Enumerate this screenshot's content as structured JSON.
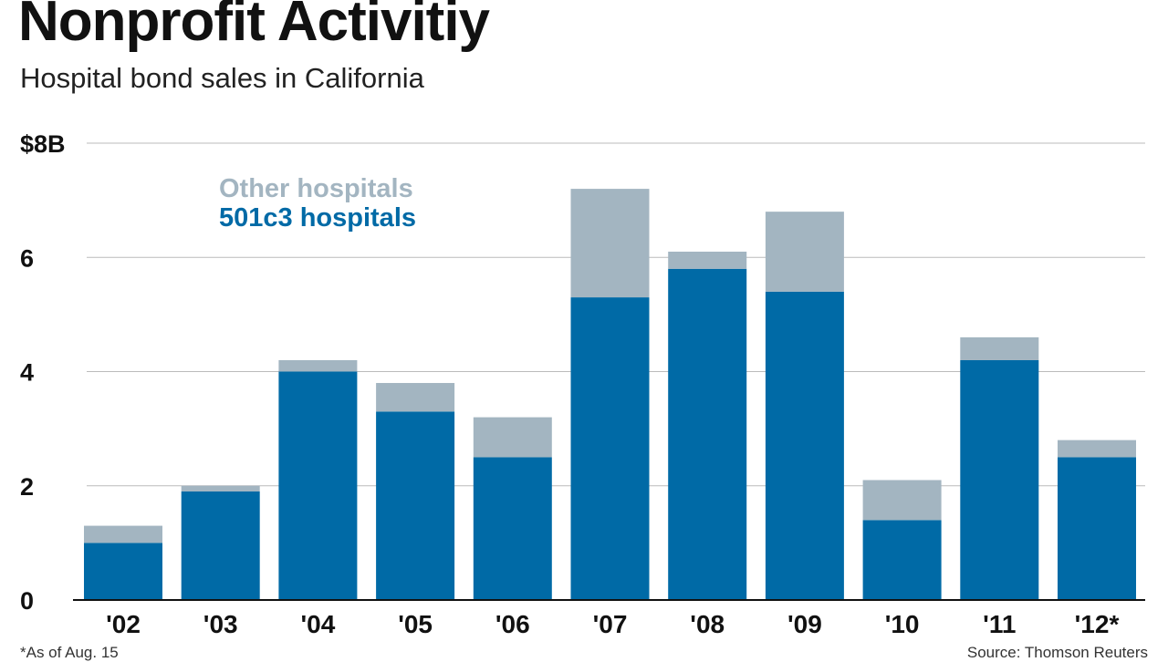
{
  "title": "Nonprofit Activitiy",
  "subtitle": "Hospital bond sales in California",
  "footnote": "*As of Aug. 15",
  "source": "Source: Thomson Reuters",
  "colors": {
    "other": "#a3b5c1",
    "c3": "#006aa6",
    "grid": "#bbbbbb",
    "axis": "#111111"
  },
  "chart_data": {
    "type": "bar",
    "stacked": true,
    "categories": [
      "'02",
      "'03",
      "'04",
      "'05",
      "'06",
      "'07",
      "'08",
      "'09",
      "'10",
      "'11",
      "'12*"
    ],
    "series": [
      {
        "name": "501c3 hospitals",
        "values": [
          1.0,
          1.9,
          4.0,
          3.3,
          2.5,
          5.3,
          5.8,
          5.4,
          1.4,
          4.2,
          2.5
        ]
      },
      {
        "name": "Other hospitals",
        "values": [
          0.3,
          0.1,
          0.2,
          0.5,
          0.7,
          1.9,
          0.3,
          1.4,
          0.7,
          0.4,
          0.3
        ]
      }
    ],
    "ylim": [
      0,
      8
    ],
    "yticks": [
      0,
      2,
      4,
      6,
      8
    ],
    "ytick_labels": [
      "0",
      "2",
      "4",
      "6",
      "$8B"
    ],
    "legend": [
      "Other hospitals",
      "501c3 hospitals"
    ],
    "legend_position": "top-left",
    "grid": true,
    "xlabel": "",
    "ylabel": ""
  }
}
